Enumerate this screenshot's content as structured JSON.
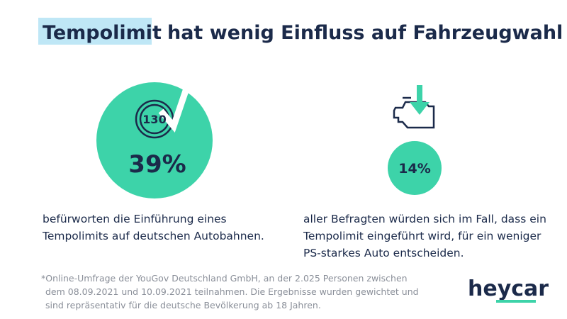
{
  "header": {
    "title_highlight": "Tempolimit",
    "title_rest": "hat wenig Einfluss auf Fahrzeugwahl"
  },
  "stats": [
    {
      "icon_label": "130",
      "value": "39%",
      "lines": [
        "befürworten die Einführung eines",
        "Tempolimits auf deutschen Autobahnen."
      ]
    },
    {
      "value": "14%",
      "lines": [
        "aller Befragten würden sich im Fall, dass ein",
        "Tempolimit eingeführt wird, für ein weniger",
        "PS-starkes Auto entscheiden."
      ]
    }
  ],
  "footnote": {
    "lines": [
      "*Online-Umfrage der YouGov Deutschland GmbH, an der 2.025 Personen zwischen",
      "dem 08.09.2021 und 10.09.2021 teilnahmen. Die Ergebnisse wurden gewichtet und",
      "sind repräsentativ für die deutsche Bevölkerung ab 18 Jahren."
    ]
  },
  "logo": "heycar"
}
